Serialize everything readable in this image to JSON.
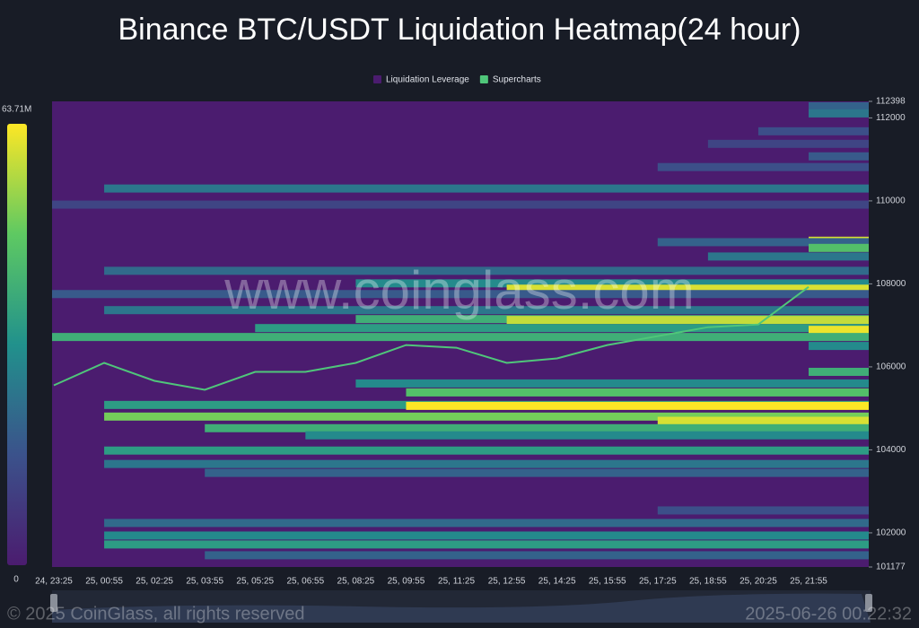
{
  "chart_data": {
    "type": "heatmap",
    "title": "Binance BTC/USDT Liquidation Heatmap(24 hour)",
    "watermark": "www.coinglass.com",
    "footer_left": "© 2025 CoinGlass, all rights reserved",
    "footer_right": "2025-06-26 00:22:32",
    "categories": [
      "24, 23:25",
      "25, 00:55",
      "25, 02:25",
      "25, 03:55",
      "25, 05:25",
      "25, 06:55",
      "25, 08:25",
      "25, 09:55",
      "25, 11:25",
      "25, 12:55",
      "25, 14:25",
      "25, 15:55",
      "25, 17:25",
      "25, 18:55",
      "25, 20:25",
      "25, 21:55"
    ],
    "ylim": [
      101177,
      112398
    ],
    "yticks": [
      112398,
      112000,
      110000,
      108000,
      106000,
      104000,
      102000,
      101177
    ],
    "colorscale": {
      "colors": [
        "#4b1c6f",
        "#3b528b",
        "#21918c",
        "#5ec962",
        "#fde725"
      ],
      "ticks": [
        0,
        {
          "value": 63.71,
          "label": "63.71M"
        }
      ]
    },
    "series": [
      {
        "name": "Liquidation Leverage",
        "color": "#4b1c6f"
      },
      {
        "name": "Supercharts",
        "color": "#4fc67a",
        "values": [
          105556,
          106095,
          105664,
          105448,
          105879,
          105879,
          106095,
          106526,
          106461,
          106095,
          106203,
          106526,
          106741,
          106957,
          107022,
          107927
        ]
      }
    ],
    "levels": [
      {
        "price": 112280,
        "start": "25, 21:55",
        "value": 20
      },
      {
        "price": 112108,
        "start": "25, 21:55",
        "value": 25
      },
      {
        "price": 111677,
        "start": "25, 20:25",
        "value": 15
      },
      {
        "price": 111375,
        "start": "25, 18:55",
        "value": 12
      },
      {
        "price": 111073,
        "start": "25, 21:55",
        "value": 18
      },
      {
        "price": 110815,
        "start": "25, 17:25",
        "value": 15
      },
      {
        "price": 110298,
        "start": "25, 00:55",
        "value": 25
      },
      {
        "price": 109910,
        "start": "24, 23:25",
        "value": 12
      },
      {
        "price": 109040,
        "start": "25, 21:55",
        "value": 60
      },
      {
        "price": 109005,
        "start": "25, 17:25",
        "value": 20
      },
      {
        "price": 108867,
        "start": "25, 21:55",
        "value": 45
      },
      {
        "price": 108660,
        "start": "25, 18:55",
        "value": 25
      },
      {
        "price": 108315,
        "start": "25, 00:55",
        "value": 22
      },
      {
        "price": 108013,
        "start": "25, 08:25",
        "value": 30
      },
      {
        "price": 107884,
        "start": "25, 12:55",
        "value": 60
      },
      {
        "price": 107755,
        "start": "24, 23:25",
        "value": 18
      },
      {
        "price": 107367,
        "start": "25, 00:55",
        "value": 25
      },
      {
        "price": 107151,
        "start": "25, 08:25",
        "value": 40
      },
      {
        "price": 107130,
        "start": "25, 12:55",
        "value": 58
      },
      {
        "price": 106935,
        "start": "25, 05:25",
        "value": 35
      },
      {
        "price": 106892,
        "start": "25, 21:55",
        "value": 62
      },
      {
        "price": 106720,
        "start": "24, 23:25",
        "value": 40
      },
      {
        "price": 106504,
        "start": "25, 21:55",
        "value": 30
      },
      {
        "price": 105880,
        "start": "25, 21:55",
        "value": 40
      },
      {
        "price": 105600,
        "start": "25, 08:25",
        "value": 30
      },
      {
        "price": 105384,
        "start": "25, 09:55",
        "value": 45
      },
      {
        "price": 105083,
        "start": "25, 00:55",
        "value": 35
      },
      {
        "price": 105060,
        "start": "25, 09:55",
        "value": 63.71
      },
      {
        "price": 104802,
        "start": "25, 00:55",
        "value": 50
      },
      {
        "price": 104700,
        "start": "25, 17:25",
        "value": 60
      },
      {
        "price": 104522,
        "start": "25, 03:55",
        "value": 40
      },
      {
        "price": 104350,
        "start": "25, 06:55",
        "value": 30
      },
      {
        "price": 103983,
        "start": "25, 00:55",
        "value": 35
      },
      {
        "price": 103660,
        "start": "25, 00:55",
        "value": 25
      },
      {
        "price": 103445,
        "start": "25, 03:55",
        "value": 20
      },
      {
        "price": 102540,
        "start": "25, 17:25",
        "value": 15
      },
      {
        "price": 102238,
        "start": "25, 00:55",
        "value": 22
      },
      {
        "price": 101935,
        "start": "25, 00:55",
        "value": 30
      },
      {
        "price": 101720,
        "start": "25, 00:55",
        "value": 35
      },
      {
        "price": 101460,
        "start": "25, 03:55",
        "value": 20
      }
    ]
  }
}
